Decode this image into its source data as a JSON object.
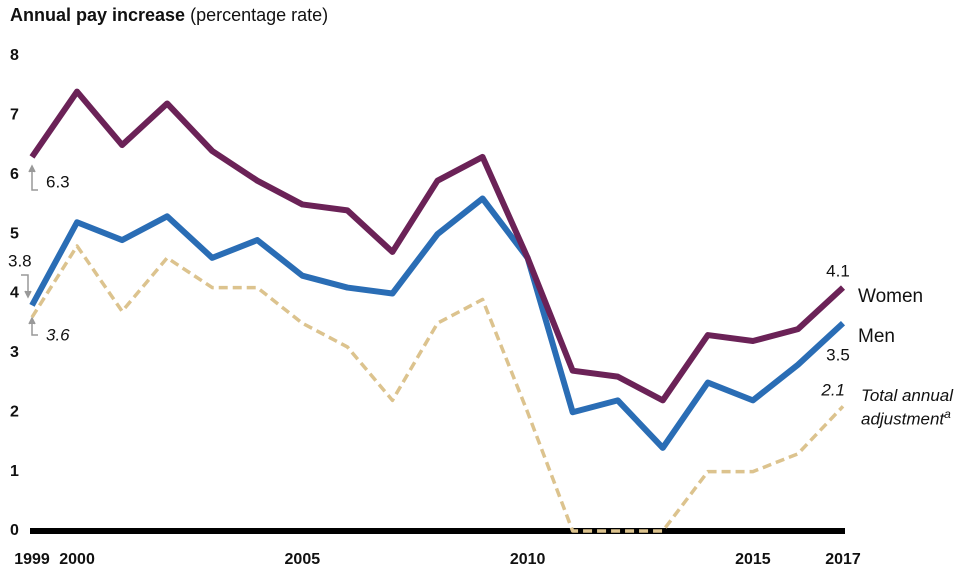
{
  "chart_data": {
    "type": "line",
    "title": "Annual pay increase",
    "subtitle": "(percentage rate)",
    "x": [
      1999,
      2000,
      2001,
      2002,
      2003,
      2004,
      2005,
      2006,
      2007,
      2008,
      2009,
      2010,
      2011,
      2012,
      2013,
      2014,
      2015,
      2016,
      2017
    ],
    "xlim": [
      1999,
      2017
    ],
    "xticks": [
      1999,
      2000,
      2005,
      2010,
      2015,
      2017
    ],
    "ylim": [
      0,
      8
    ],
    "yticks": [
      0,
      1,
      2,
      3,
      4,
      5,
      6,
      7,
      8
    ],
    "series": [
      {
        "name": "Women",
        "color": "#6b2257",
        "values": [
          6.3,
          7.4,
          6.5,
          7.2,
          6.4,
          5.9,
          5.5,
          5.4,
          4.7,
          5.9,
          6.3,
          4.6,
          2.7,
          2.6,
          2.2,
          3.3,
          3.2,
          3.4,
          4.1
        ]
      },
      {
        "name": "Men",
        "color": "#2a6db5",
        "values": [
          3.8,
          5.2,
          4.9,
          5.3,
          4.6,
          4.9,
          4.3,
          4.1,
          4.0,
          5.0,
          5.6,
          4.6,
          2.0,
          2.2,
          1.4,
          2.5,
          2.2,
          2.8,
          3.5
        ]
      },
      {
        "name": "Total annual adjustment",
        "name_note": "a",
        "color": "#dcc38e",
        "dashed": true,
        "values": [
          3.6,
          4.8,
          3.7,
          4.6,
          4.1,
          4.1,
          3.5,
          3.1,
          2.2,
          3.5,
          3.9,
          2.0,
          0,
          0,
          0,
          1.0,
          1.0,
          1.3,
          2.1
        ]
      }
    ]
  }
}
